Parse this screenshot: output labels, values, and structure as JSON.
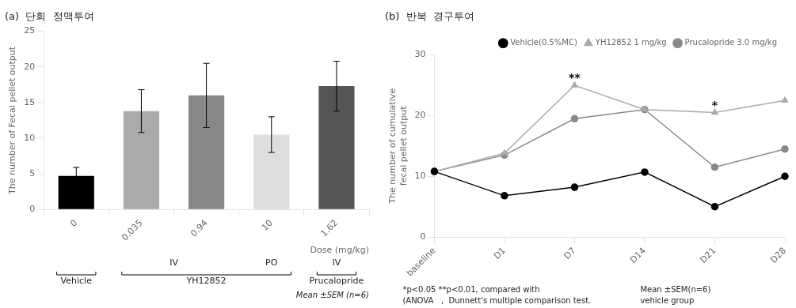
{
  "chart_data": [
    {
      "type": "bar",
      "title": "(a)  단회  정맥투여",
      "categories": [
        "0",
        "0.035",
        "0.94",
        "10",
        "1.62"
      ],
      "values": [
        4.7,
        13.8,
        16.0,
        10.5,
        17.3
      ],
      "errors": [
        1.2,
        3.0,
        4.5,
        2.5,
        3.5
      ],
      "colors": [
        "#000000",
        "#aaaaaa",
        "#888888",
        "#dddddd",
        "#555555"
      ],
      "ylabel": "The number of Fecal pellet output",
      "xlabel": "Dose (mg/kg)",
      "ylim": [
        0,
        25
      ],
      "yticks": [
        0,
        5,
        10,
        15,
        20,
        25
      ],
      "grid": false,
      "routes": [
        {
          "label": "IV",
          "categories": [
            "0.035",
            "0.94"
          ]
        },
        {
          "label": "PO",
          "categories": [
            "10"
          ]
        },
        {
          "label": "IV",
          "categories": [
            "1.62"
          ]
        }
      ],
      "groups": [
        {
          "label": "Vehicle",
          "categories": [
            "0"
          ]
        },
        {
          "label": "YH12852",
          "categories": [
            "0.035",
            "0.94",
            "10"
          ]
        },
        {
          "label": "Prucalopride",
          "categories": [
            "1.62"
          ]
        }
      ],
      "caption": "Mean ±SEM (n=6)"
    },
    {
      "type": "line",
      "title": "(b)  반복  경구투여",
      "categories": [
        "baseline",
        "D1",
        "D7",
        "D14",
        "D21",
        "D28"
      ],
      "series": [
        {
          "name": "Vehicle(0.5%MC)",
          "color": "#000000",
          "marker": "circle",
          "values": [
            10.8,
            6.8,
            8.2,
            10.7,
            5.0,
            10.0
          ]
        },
        {
          "name": "YH12852 1 mg/kg",
          "color": "#aaaaaa",
          "marker": "triangle",
          "values": [
            10.8,
            13.8,
            25.0,
            21.0,
            20.5,
            22.5
          ]
        },
        {
          "name": "Prucalopride 3.0 mg/kg",
          "color": "#888888",
          "marker": "circle",
          "values": [
            10.8,
            13.5,
            19.5,
            21.0,
            11.5,
            14.5
          ]
        }
      ],
      "ylabel": "The number of cumulative\nfecal pellet output",
      "ylim": [
        0,
        30
      ],
      "yticks": [
        0,
        10,
        20,
        30
      ],
      "grid": false,
      "legend": "upper right",
      "annotations": [
        {
          "text": "**",
          "x": "D7",
          "y": 25.8
        },
        {
          "text": "*",
          "x": "D21",
          "y": 21.2
        }
      ],
      "notes": [
        "*p<0.05 **p<0.01, compared with",
        "Mean ±SEM(n=6)",
        "(ANOVA   ,  Dunnett's multiple comparison test.",
        "vehicle group"
      ]
    }
  ]
}
